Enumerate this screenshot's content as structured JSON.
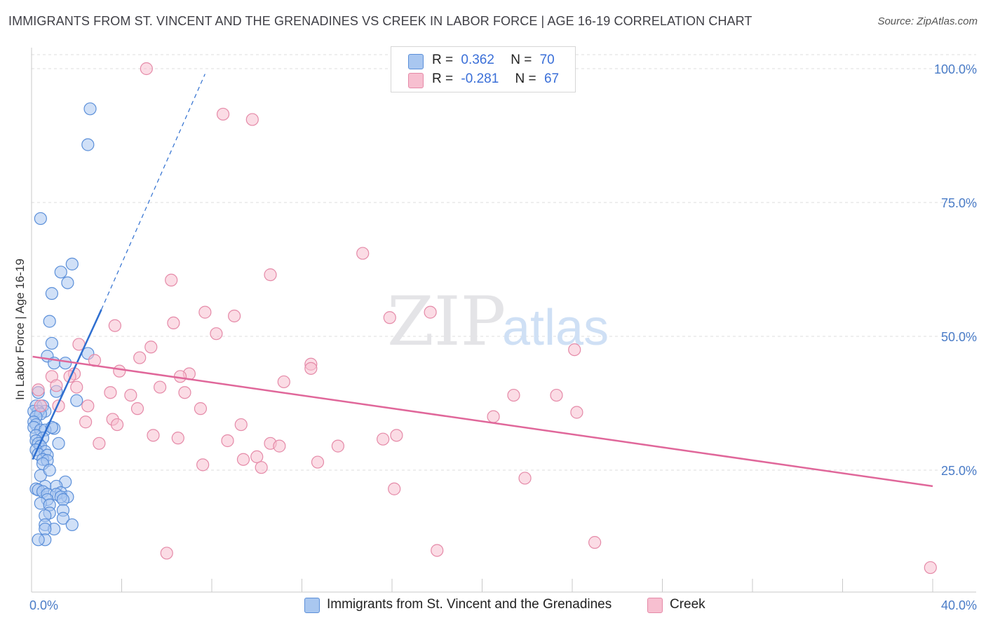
{
  "title": "IMMIGRANTS FROM ST. VINCENT AND THE GRENADINES VS CREEK IN LABOR FORCE | AGE 16-19 CORRELATION CHART",
  "source": "Source: ZipAtlas.com",
  "watermark": {
    "zip": "ZIP",
    "atlas": "atlas"
  },
  "legend": {
    "rows": [
      {
        "r_label": "R =",
        "r_value": "0.362",
        "n_label": "N =",
        "n_value": "70"
      },
      {
        "r_label": "R =",
        "r_value": "-0.281",
        "n_label": "N =",
        "n_value": "67"
      }
    ]
  },
  "colors": {
    "series1_fill": "#a9c7f0",
    "series1_stroke": "#5b8fd9",
    "series1_line": "#2f6fd0",
    "series2_fill": "#f7bfd0",
    "series2_stroke": "#e58aa8",
    "series2_line": "#e0679a",
    "grid": "#dcdcdc",
    "axis_text": "#4a7cc7"
  },
  "chart_data": {
    "type": "scatter",
    "ylabel": "In Labor Force | Age 16-19",
    "xlim": [
      0,
      40
    ],
    "ylim": [
      0,
      105
    ],
    "x_tick_labels": [
      "0.0%",
      "40.0%"
    ],
    "y_ticks": [
      {
        "value": 25,
        "label": "25.0%"
      },
      {
        "value": 50,
        "label": "50.0%"
      },
      {
        "value": 75,
        "label": "75.0%"
      },
      {
        "value": 100,
        "label": "100.0%"
      }
    ],
    "grid": "horizontal dashed",
    "legend_position": "top-center",
    "series": [
      {
        "name": "Immigrants from St. Vincent and the Grenadines",
        "trend": {
          "x0": 0.05,
          "y0": 27.0,
          "x1": 3.1,
          "y1": 55.0,
          "dash_to_x": 7.7,
          "dash_to_y": 99.0
        },
        "points": [
          [
            2.6,
            92.5
          ],
          [
            2.5,
            85.8
          ],
          [
            0.4,
            72.0
          ],
          [
            1.8,
            63.5
          ],
          [
            1.3,
            62.0
          ],
          [
            1.6,
            60.0
          ],
          [
            0.9,
            58.0
          ],
          [
            0.8,
            52.8
          ],
          [
            0.9,
            48.7
          ],
          [
            0.7,
            46.3
          ],
          [
            1.0,
            45.0
          ],
          [
            1.5,
            45.0
          ],
          [
            2.5,
            46.8
          ],
          [
            1.1,
            39.7
          ],
          [
            0.3,
            39.5
          ],
          [
            0.2,
            37.0
          ],
          [
            0.5,
            37.0
          ],
          [
            0.6,
            36.0
          ],
          [
            0.3,
            36.0
          ],
          [
            0.1,
            36.0
          ],
          [
            0.4,
            35.5
          ],
          [
            0.2,
            35.0
          ],
          [
            0.1,
            34.0
          ],
          [
            0.2,
            33.5
          ],
          [
            1.0,
            32.8
          ],
          [
            0.1,
            33.0
          ],
          [
            0.4,
            32.5
          ],
          [
            0.6,
            32.5
          ],
          [
            0.2,
            31.5
          ],
          [
            0.5,
            31.0
          ],
          [
            0.2,
            30.5
          ],
          [
            0.3,
            30.0
          ],
          [
            0.4,
            29.5
          ],
          [
            0.2,
            28.8
          ],
          [
            0.6,
            28.5
          ],
          [
            0.3,
            28.0
          ],
          [
            0.7,
            27.8
          ],
          [
            0.5,
            27.0
          ],
          [
            0.7,
            26.8
          ],
          [
            0.5,
            26.2
          ],
          [
            1.5,
            22.8
          ],
          [
            0.6,
            22.0
          ],
          [
            1.1,
            22.0
          ],
          [
            0.2,
            21.5
          ],
          [
            0.3,
            21.3
          ],
          [
            0.5,
            21.0
          ],
          [
            1.3,
            20.8
          ],
          [
            0.7,
            20.5
          ],
          [
            1.1,
            20.5
          ],
          [
            1.6,
            20.0
          ],
          [
            1.3,
            20.0
          ],
          [
            0.7,
            19.5
          ],
          [
            1.4,
            19.5
          ],
          [
            0.4,
            18.8
          ],
          [
            0.8,
            18.5
          ],
          [
            1.4,
            17.5
          ],
          [
            0.8,
            17.0
          ],
          [
            0.6,
            16.5
          ],
          [
            1.4,
            16.0
          ],
          [
            0.6,
            14.8
          ],
          [
            1.8,
            14.8
          ],
          [
            1.0,
            14.0
          ],
          [
            0.6,
            14.0
          ],
          [
            0.6,
            12.0
          ],
          [
            0.3,
            12.0
          ],
          [
            2.0,
            38.0
          ],
          [
            0.9,
            33.0
          ],
          [
            1.2,
            30.0
          ],
          [
            0.4,
            24.0
          ],
          [
            0.8,
            25.0
          ]
        ]
      },
      {
        "name": "Creek",
        "trend": {
          "x0": 0.05,
          "y0": 46.2,
          "x1": 40.0,
          "y1": 22.0
        },
        "points": [
          [
            5.1,
            100.0
          ],
          [
            8.5,
            91.5
          ],
          [
            9.8,
            90.5
          ],
          [
            14.7,
            65.5
          ],
          [
            6.2,
            60.5
          ],
          [
            10.6,
            61.5
          ],
          [
            17.7,
            54.5
          ],
          [
            7.7,
            54.5
          ],
          [
            15.9,
            53.5
          ],
          [
            9.0,
            53.8
          ],
          [
            3.7,
            52.0
          ],
          [
            6.3,
            52.5
          ],
          [
            8.2,
            50.5
          ],
          [
            2.1,
            48.5
          ],
          [
            5.3,
            48.0
          ],
          [
            24.1,
            47.5
          ],
          [
            4.8,
            46.0
          ],
          [
            2.8,
            45.5
          ],
          [
            12.4,
            44.8
          ],
          [
            12.4,
            44.0
          ],
          [
            3.9,
            43.5
          ],
          [
            0.9,
            42.5
          ],
          [
            1.9,
            43.0
          ],
          [
            7.0,
            43.0
          ],
          [
            1.7,
            42.5
          ],
          [
            6.6,
            42.5
          ],
          [
            11.2,
            41.5
          ],
          [
            1.1,
            40.8
          ],
          [
            2.0,
            40.5
          ],
          [
            5.7,
            40.5
          ],
          [
            0.3,
            40.0
          ],
          [
            6.8,
            39.5
          ],
          [
            3.5,
            39.5
          ],
          [
            4.4,
            39.0
          ],
          [
            21.4,
            39.0
          ],
          [
            23.3,
            39.0
          ],
          [
            0.4,
            37.0
          ],
          [
            1.2,
            37.0
          ],
          [
            2.5,
            37.0
          ],
          [
            4.7,
            36.5
          ],
          [
            7.5,
            36.5
          ],
          [
            24.2,
            35.8
          ],
          [
            20.5,
            35.0
          ],
          [
            3.6,
            34.5
          ],
          [
            2.4,
            34.0
          ],
          [
            3.8,
            33.5
          ],
          [
            9.3,
            33.5
          ],
          [
            5.4,
            31.5
          ],
          [
            6.5,
            31.0
          ],
          [
            16.2,
            31.5
          ],
          [
            8.7,
            30.5
          ],
          [
            15.6,
            30.8
          ],
          [
            10.6,
            30.0
          ],
          [
            11.0,
            29.5
          ],
          [
            13.6,
            29.5
          ],
          [
            9.4,
            27.0
          ],
          [
            10.0,
            27.5
          ],
          [
            7.6,
            26.0
          ],
          [
            12.7,
            26.5
          ],
          [
            10.2,
            25.5
          ],
          [
            21.9,
            23.5
          ],
          [
            16.1,
            21.5
          ],
          [
            6.0,
            9.5
          ],
          [
            18.0,
            10.0
          ],
          [
            25.0,
            11.5
          ],
          [
            39.9,
            6.8
          ],
          [
            3.0,
            30.0
          ]
        ]
      }
    ]
  }
}
